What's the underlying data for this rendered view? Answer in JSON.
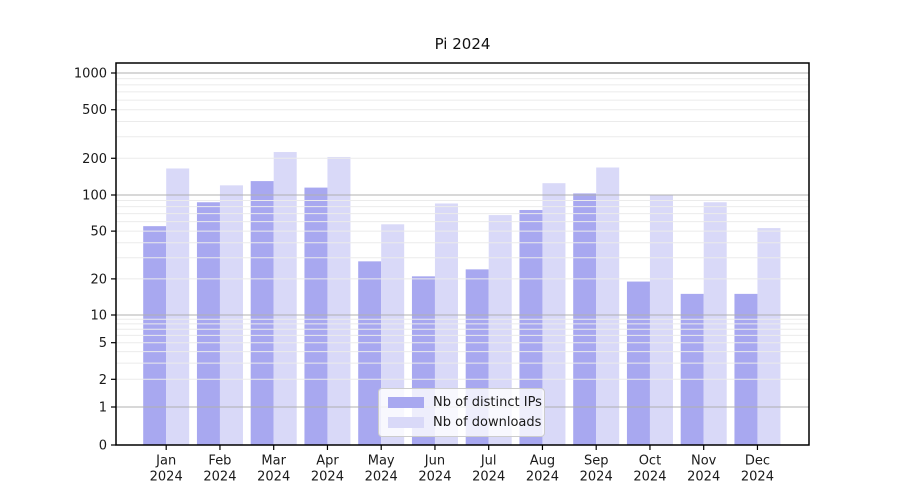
{
  "chart_data": {
    "type": "bar",
    "title": "Pi 2024",
    "xlabel": "",
    "ylabel": "",
    "yscale": "symlog",
    "ylim": [
      0,
      1200
    ],
    "yticks": [
      0,
      1,
      2,
      5,
      10,
      20,
      50,
      100,
      200,
      500,
      1000
    ],
    "grid": "horizontal major+minor, drawn above bars",
    "legend_position": "lower center inside plot",
    "categories": [
      "Jan 2024",
      "Feb 2024",
      "Mar 2024",
      "Apr 2024",
      "May 2024",
      "Jun 2024",
      "Jul 2024",
      "Aug 2024",
      "Sep 2024",
      "Oct 2024",
      "Nov 2024",
      "Dec 2024"
    ],
    "series": [
      {
        "name": "Nb of distinct IPs",
        "color": "#a8a8f0",
        "values": [
          55,
          87,
          130,
          115,
          28,
          21,
          24,
          75,
          103,
          19,
          15,
          15
        ]
      },
      {
        "name": "Nb of downloads",
        "color": "#d9d9f8",
        "values": [
          165,
          120,
          225,
          205,
          57,
          85,
          68,
          125,
          168,
          100,
          87,
          53
        ]
      }
    ],
    "colors": {
      "major_grid": "#b0b0b0",
      "minor_grid": "#ebebeb",
      "axis": "#000000",
      "text": "#1a1a1a"
    }
  }
}
